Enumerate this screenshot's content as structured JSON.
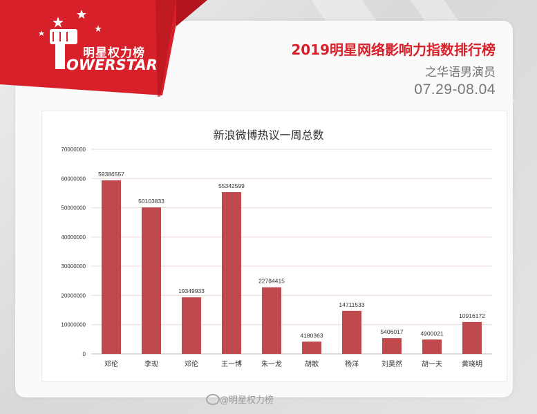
{
  "logo": {
    "cn": "明星权力榜",
    "en": "OWERSTAR",
    "icon": "raised-fist-icon",
    "brand_color": "#d8202a"
  },
  "header": {
    "title": "2019明星网络影响力指数排行榜",
    "subtitle": "之华语男演员",
    "date_range": "07.29-08.04"
  },
  "watermark": "@明星权力榜",
  "chart_data": {
    "type": "bar",
    "title": "新浪微博热议一周总数",
    "xlabel": "",
    "ylabel": "",
    "ylim": [
      0,
      70000000
    ],
    "yticks": [
      "70000000",
      "60000000",
      "50000000",
      "40000000",
      "30000000",
      "20000000",
      "10000000",
      "0"
    ],
    "grid": true,
    "bar_color": "#c0494d",
    "categories": [
      "邓伦",
      "李现",
      "邓伦",
      "王一博",
      "朱一龙",
      "胡歌",
      "杨洋",
      "刘昊然",
      "胡一天",
      "黄晓明"
    ],
    "values": [
      59386557,
      50103833,
      19349933,
      55342599,
      22784415,
      4180363,
      14711533,
      5406017,
      4900021,
      10916172
    ],
    "value_labels": [
      "59386557",
      "50103833",
      "19349933",
      "55342599",
      "22784415",
      "4180363",
      "14711533",
      "5406017",
      "4900021",
      "10916172"
    ]
  }
}
